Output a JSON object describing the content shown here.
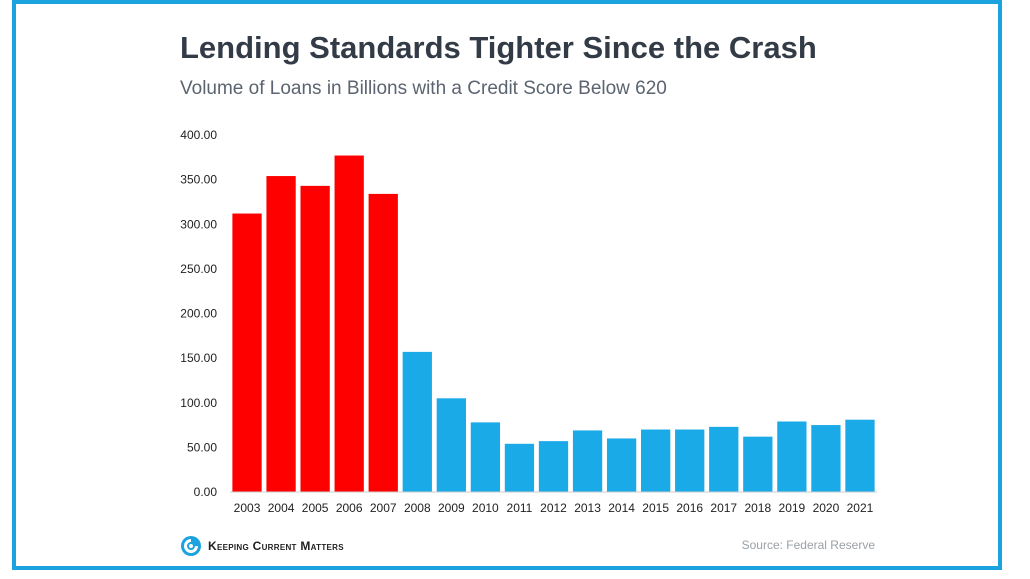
{
  "header": {
    "title": "Lending Standards Tighter Since the Crash",
    "subtitle": "Volume of Loans in Billions with a Credit Score Below 620"
  },
  "footer": {
    "brand": "Keeping Current Matters",
    "source": "Source: Federal Reserve"
  },
  "colors": {
    "frame": "#1aa3df",
    "pre_crash": "#ff0000",
    "post_crash": "#1aaae8"
  },
  "chart_data": {
    "type": "bar",
    "title": "Lending Standards Tighter Since the Crash",
    "subtitle": "Volume of Loans in Billions with a Credit Score Below 620",
    "xlabel": "",
    "ylabel": "",
    "ylim": [
      0,
      400
    ],
    "yticks": [
      "0.00",
      "50.00",
      "100.00",
      "150.00",
      "200.00",
      "250.00",
      "300.00",
      "350.00",
      "400.00"
    ],
    "grid": false,
    "categories": [
      "2003",
      "2004",
      "2005",
      "2006",
      "2007",
      "2008",
      "2009",
      "2010",
      "2011",
      "2012",
      "2013",
      "2014",
      "2015",
      "2016",
      "2017",
      "2018",
      "2019",
      "2020",
      "2021"
    ],
    "values": [
      312,
      354,
      343,
      377,
      334,
      157,
      105,
      78,
      54,
      57,
      69,
      60,
      70,
      70,
      73,
      62,
      79,
      75,
      81
    ],
    "series_colors": [
      "#ff0000",
      "#ff0000",
      "#ff0000",
      "#ff0000",
      "#ff0000",
      "#1aaae8",
      "#1aaae8",
      "#1aaae8",
      "#1aaae8",
      "#1aaae8",
      "#1aaae8",
      "#1aaae8",
      "#1aaae8",
      "#1aaae8",
      "#1aaae8",
      "#1aaae8",
      "#1aaae8",
      "#1aaae8",
      "#1aaae8"
    ]
  }
}
